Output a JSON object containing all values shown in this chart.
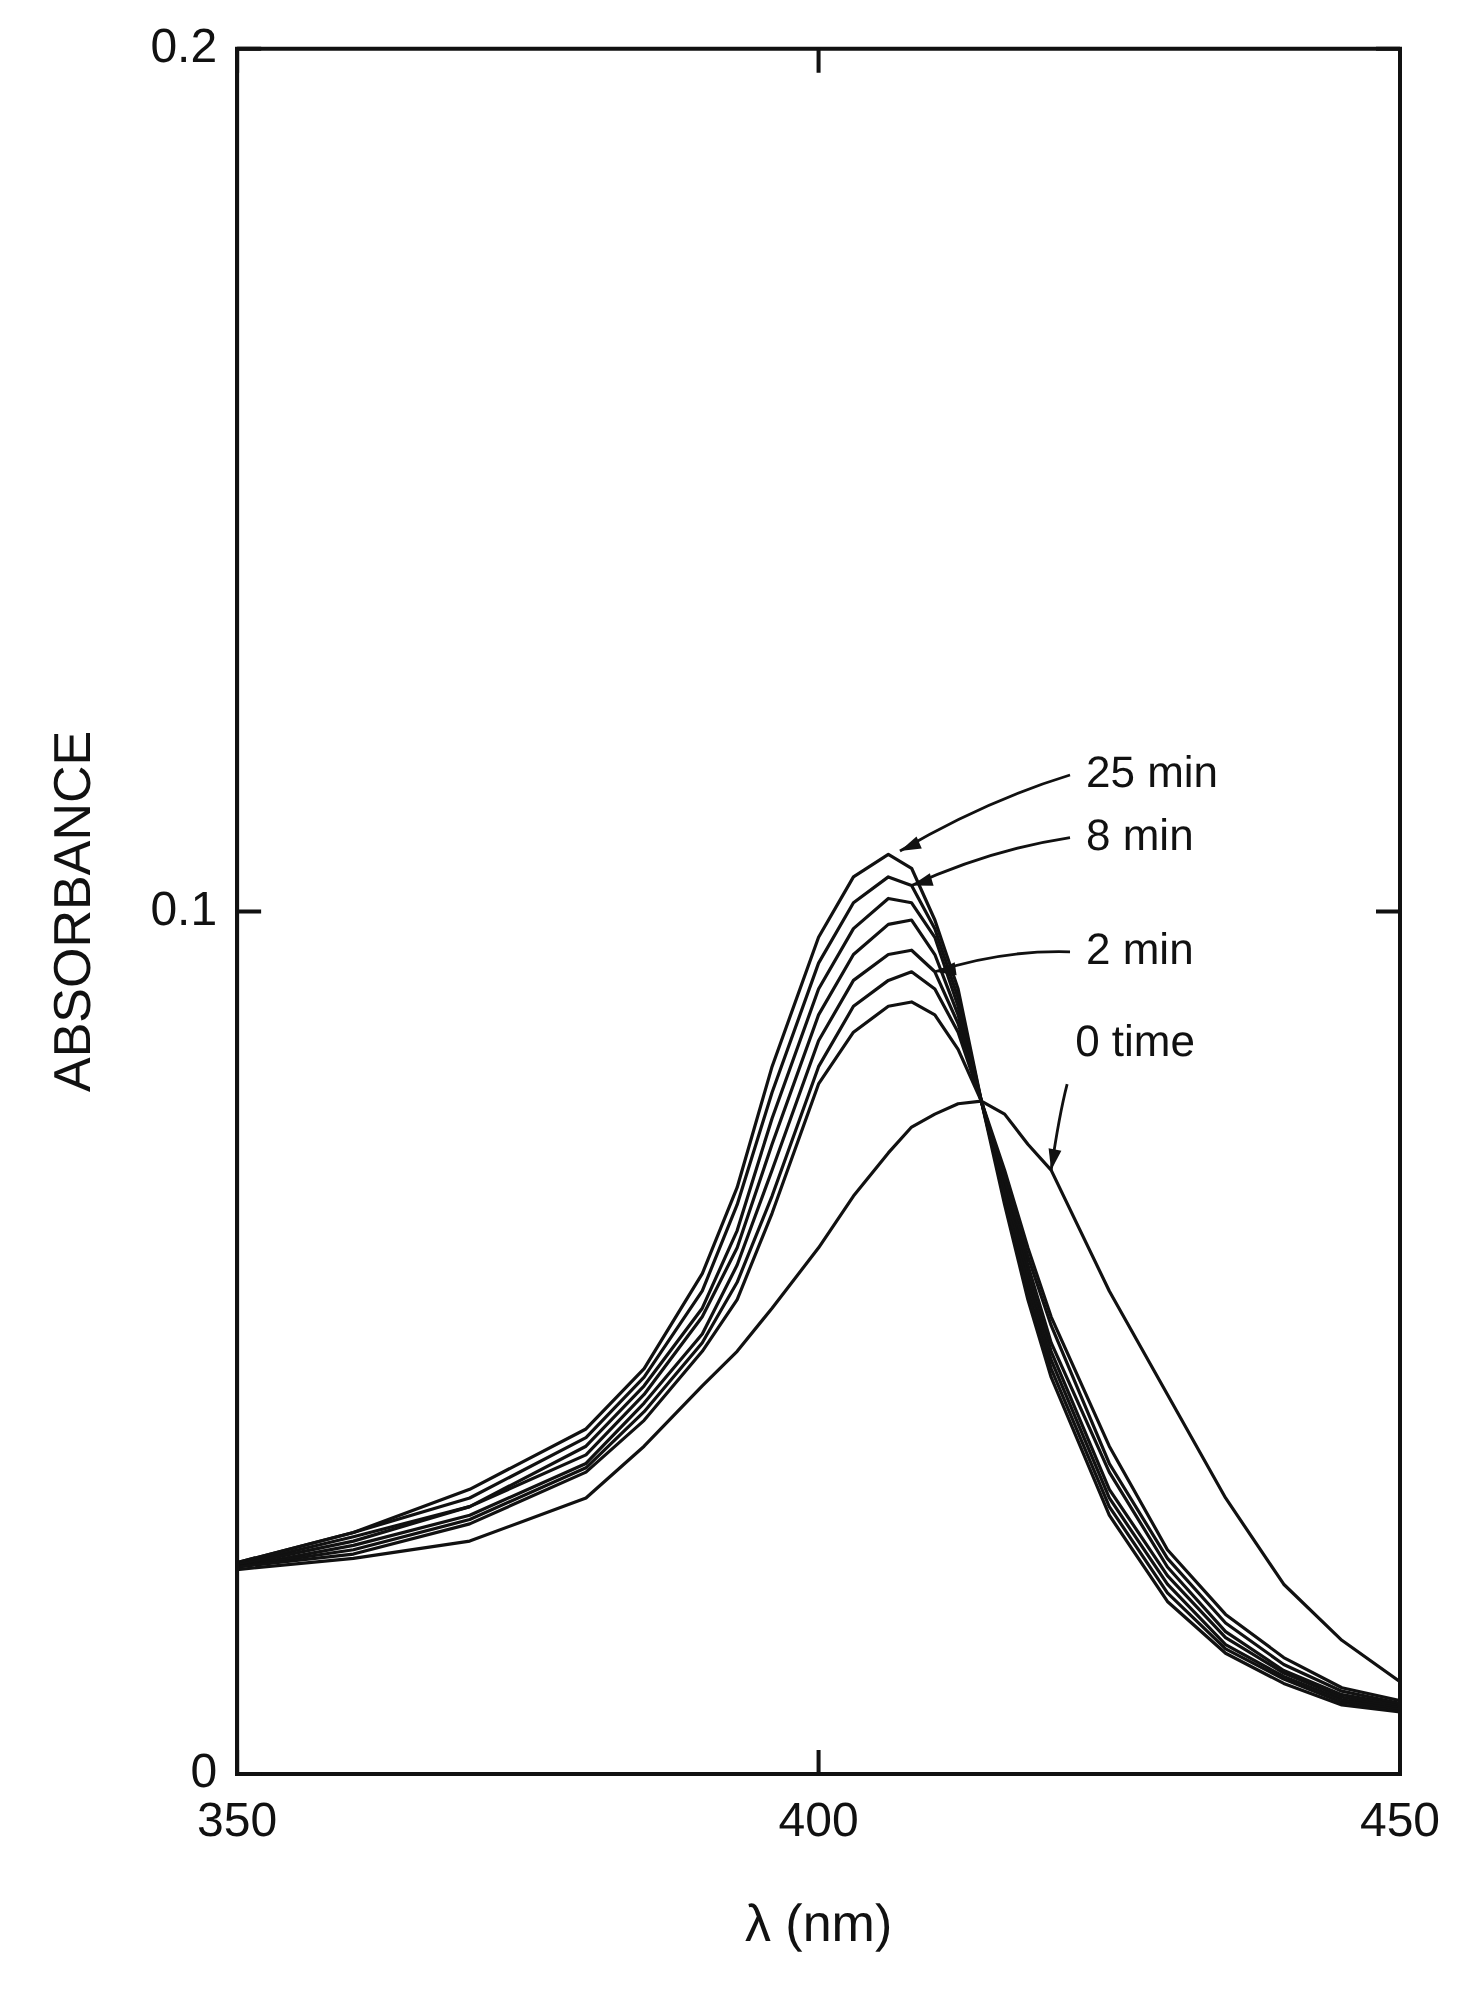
{
  "chart_data": {
    "type": "line",
    "xlabel": "λ (nm)",
    "ylabel": "ABSORBANCE",
    "x": [
      350,
      360,
      370,
      380,
      385,
      390,
      393,
      396,
      400,
      403,
      406,
      408,
      410,
      412,
      414,
      416,
      418,
      420,
      425,
      430,
      435,
      440,
      445,
      450
    ],
    "series": [
      {
        "color": "#111111",
        "values": [
          0.0237,
          0.025,
          0.027,
          0.032,
          0.038,
          0.045,
          0.049,
          0.054,
          0.061,
          0.067,
          0.072,
          0.075,
          0.0765,
          0.0777,
          0.078,
          0.0765,
          0.073,
          0.07,
          0.056,
          0.044,
          0.032,
          0.022,
          0.0155,
          0.0107
        ]
      },
      {
        "color": "#111111",
        "values": [
          0.024,
          0.0255,
          0.029,
          0.035,
          0.041,
          0.049,
          0.055,
          0.065,
          0.08,
          0.086,
          0.089,
          0.0895,
          0.088,
          0.084,
          0.078,
          0.07,
          0.061,
          0.053,
          0.038,
          0.026,
          0.0185,
          0.0135,
          0.01,
          0.0085
        ]
      },
      {
        "color": "#111111",
        "values": [
          0.024,
          0.026,
          0.0295,
          0.0355,
          0.042,
          0.05,
          0.057,
          0.067,
          0.082,
          0.089,
          0.092,
          0.093,
          0.091,
          0.086,
          0.078,
          0.069,
          0.06,
          0.052,
          0.036,
          0.025,
          0.0175,
          0.0127,
          0.0096,
          0.0082
        ]
      },
      {
        "color": "#111111",
        "values": [
          0.024,
          0.0265,
          0.03,
          0.036,
          0.043,
          0.051,
          0.059,
          0.07,
          0.085,
          0.092,
          0.095,
          0.0955,
          0.093,
          0.087,
          0.078,
          0.069,
          0.059,
          0.05,
          0.035,
          0.024,
          0.0165,
          0.012,
          0.0092,
          0.008
        ]
      },
      {
        "color": "#111111",
        "values": [
          0.0242,
          0.027,
          0.031,
          0.037,
          0.044,
          0.053,
          0.061,
          0.073,
          0.088,
          0.095,
          0.0985,
          0.099,
          0.095,
          0.088,
          0.078,
          0.068,
          0.058,
          0.049,
          0.033,
          0.023,
          0.0158,
          0.0117,
          0.0089,
          0.0078
        ]
      },
      {
        "color": "#111111",
        "values": [
          0.0243,
          0.0275,
          0.031,
          0.038,
          0.045,
          0.054,
          0.063,
          0.076,
          0.091,
          0.098,
          0.1015,
          0.101,
          0.097,
          0.089,
          0.078,
          0.067,
          0.057,
          0.048,
          0.032,
          0.022,
          0.015,
          0.0113,
          0.0086,
          0.0076
        ]
      },
      {
        "color": "#111111",
        "values": [
          0.0245,
          0.028,
          0.032,
          0.039,
          0.046,
          0.056,
          0.066,
          0.079,
          0.094,
          0.101,
          0.104,
          0.103,
          0.098,
          0.09,
          0.078,
          0.067,
          0.056,
          0.047,
          0.031,
          0.021,
          0.0145,
          0.011,
          0.0083,
          0.0074
        ]
      },
      {
        "color": "#111111",
        "values": [
          0.0245,
          0.028,
          0.033,
          0.04,
          0.047,
          0.058,
          0.068,
          0.082,
          0.097,
          0.104,
          0.1066,
          0.105,
          0.099,
          0.091,
          0.078,
          0.066,
          0.055,
          0.046,
          0.03,
          0.02,
          0.014,
          0.0105,
          0.008,
          0.0072
        ]
      }
    ],
    "annotations": [
      {
        "text": "25 min",
        "x": 407,
        "y": 0.107
      },
      {
        "text": "8 min",
        "x": 408,
        "y": 0.103
      },
      {
        "text": "2 min",
        "x": 410,
        "y": 0.093
      },
      {
        "text": "0 time",
        "x": 420,
        "y": 0.07
      }
    ],
    "xlim": [
      350,
      450
    ],
    "xticks": [
      350,
      400,
      450
    ],
    "ylim": [
      0,
      0.2
    ],
    "yticks": [
      0,
      0.1,
      0.2
    ],
    "legend": false,
    "marker": "none",
    "line_style": "solid"
  }
}
